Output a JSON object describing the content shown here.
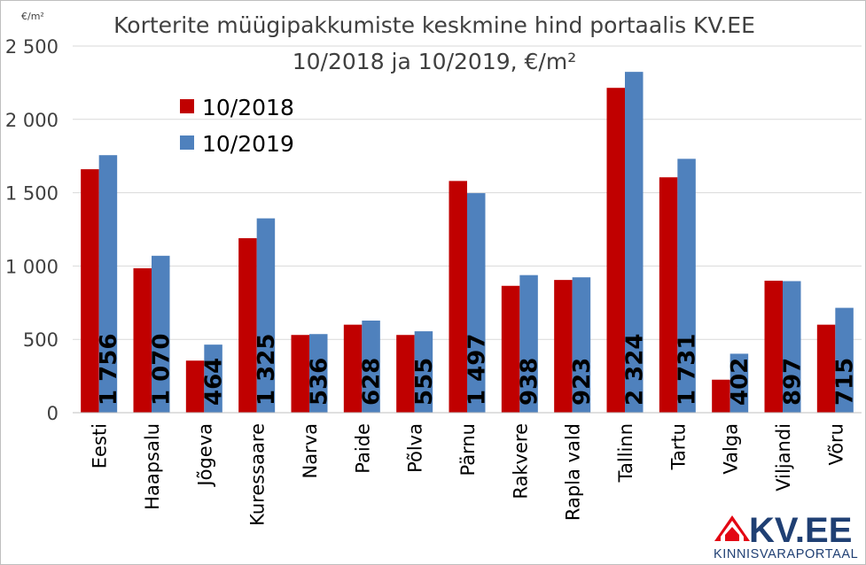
{
  "chart_data": {
    "type": "bar",
    "title": "Korterite müügipakkumiste keskmine hind portaalis KV.EE",
    "subtitle": "10/2018 ja 10/2019, €/m²",
    "ylabel": "€/m²",
    "ylim": [
      0,
      2500
    ],
    "yticks": [
      0,
      500,
      1000,
      1500,
      2000,
      2500
    ],
    "ytick_labels": [
      "0",
      "500",
      "1 000",
      "1 500",
      "2 000",
      "2 500"
    ],
    "grid": true,
    "legend_position": "top-left",
    "categories": [
      "Eesti",
      "Haapsalu",
      "Jõgeva",
      "Kuressaare",
      "Narva",
      "Paide",
      "Põlva",
      "Pärnu",
      "Rakvere",
      "Rapla vald",
      "Tallinn",
      "Tartu",
      "Valga",
      "Viljandi",
      "Võru"
    ],
    "series": [
      {
        "name": "10/2018",
        "color": "#c00000",
        "values": [
          1660,
          985,
          355,
          1190,
          530,
          600,
          530,
          1580,
          865,
          905,
          2215,
          1605,
          225,
          900,
          600
        ]
      },
      {
        "name": "10/2019",
        "color": "#4f81bd",
        "values": [
          1756,
          1070,
          464,
          1325,
          536,
          628,
          555,
          1497,
          938,
          923,
          2324,
          1731,
          402,
          897,
          715
        ],
        "labels": [
          "1 756",
          "1 070",
          "464",
          "1 325",
          "536",
          "628",
          "555",
          "1 497",
          "938",
          "923",
          "2 324",
          "1 731",
          "402",
          "897",
          "715"
        ]
      }
    ]
  },
  "logo": {
    "text": "KV.EE",
    "subtitle": "KINNISVARAPORTAAL",
    "icon": "house-icon",
    "accent_color": "#e30613",
    "text_color": "#1f3f73"
  }
}
